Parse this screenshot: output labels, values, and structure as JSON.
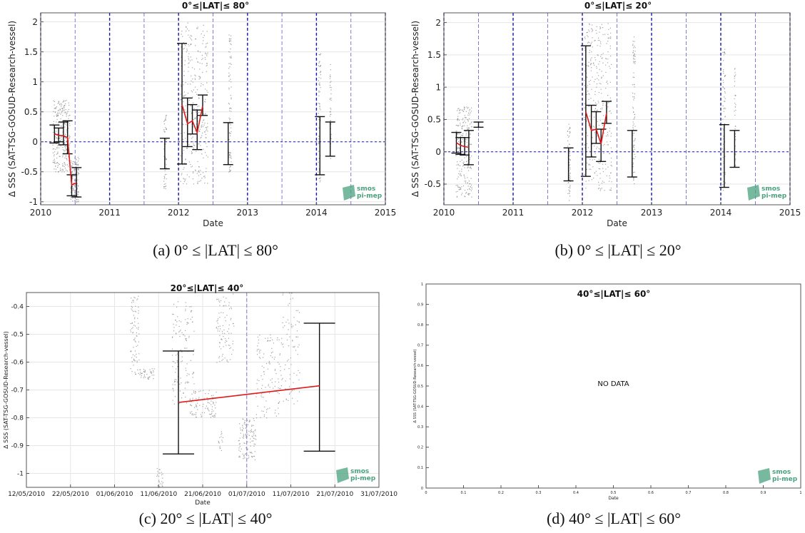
{
  "colors": {
    "axis": "#555555",
    "grid": "#e6e6e6",
    "vline_major": "#1a1aa8",
    "vline_minor": "#7c7cd6",
    "scatter": "#8c8c8c",
    "errorbar": "#111111",
    "fit": "#e01818",
    "logo": "#4aa27e"
  },
  "logo": {
    "line1": "smos",
    "line2": "pi-mep"
  },
  "chart_data": [
    {
      "id": "a",
      "type": "scatter",
      "title": "0°≤|LAT|≤ 80°",
      "caption": "(a) 0° ≤ |LAT| ≤ 80°",
      "xlabel": "Date",
      "ylabel": "Δ SSS (SAT-TSG-GOSUD-Research-vessel)",
      "x_axis": "year",
      "xlim": [
        2010,
        2015
      ],
      "ylim": [
        -1.05,
        2.15
      ],
      "xticks": [
        2010,
        2011,
        2012,
        2013,
        2014,
        2015
      ],
      "xtick_labels": [
        "2010",
        "2011",
        "2012",
        "2013",
        "2014",
        "2015"
      ],
      "yticks": [
        -1,
        -0.5,
        0,
        0.5,
        1,
        1.5,
        2
      ],
      "ytick_labels": [
        "-1",
        "-0.5",
        "0",
        "0.5",
        "1",
        "1.5",
        "2"
      ],
      "grid": true,
      "vlines_major": [
        2010,
        2011,
        2012,
        2013,
        2014,
        2015
      ],
      "vlines_minor": [
        2010.5,
        2011.5,
        2012.5,
        2013.5,
        2014.5
      ],
      "zero_line": true,
      "scatter_clusters": [
        {
          "x": [
            2010.17,
            2010.42
          ],
          "ymin": -0.5,
          "ymax": 0.7,
          "n": 260
        },
        {
          "x": [
            2010.43,
            2010.55
          ],
          "ymin": -1.0,
          "ymax": -0.25,
          "n": 140
        },
        {
          "x": [
            2011.78,
            2011.82
          ],
          "ymin": -0.8,
          "ymax": 0.5,
          "n": 60
        },
        {
          "x": [
            2012.02,
            2012.42
          ],
          "ymin": -0.7,
          "ymax": 2.0,
          "n": 320
        },
        {
          "x": [
            2012.72,
            2012.76
          ],
          "ymin": -0.5,
          "ymax": 1.8,
          "n": 80
        },
        {
          "x": [
            2014.02,
            2014.06
          ],
          "ymin": -0.7,
          "ymax": 1.6,
          "n": 70
        },
        {
          "x": [
            2014.19,
            2014.21
          ],
          "ymin": -0.3,
          "ymax": 1.3,
          "n": 40
        }
      ],
      "errorbars": [
        {
          "x": 2010.2,
          "low": -0.02,
          "high": 0.28
        },
        {
          "x": 2010.26,
          "low": 0.0,
          "high": 0.23
        },
        {
          "x": 2010.33,
          "low": -0.05,
          "high": 0.33
        },
        {
          "x": 2010.39,
          "low": -0.2,
          "high": 0.35
        },
        {
          "x": 2010.45,
          "low": -0.9,
          "high": -0.55
        },
        {
          "x": 2010.52,
          "low": -0.92,
          "high": -0.43
        },
        {
          "x": 2011.8,
          "low": -0.45,
          "high": 0.06
        },
        {
          "x": 2012.05,
          "low": -0.37,
          "high": 1.64
        },
        {
          "x": 2012.13,
          "low": -0.08,
          "high": 0.73
        },
        {
          "x": 2012.2,
          "low": 0.13,
          "high": 0.62
        },
        {
          "x": 2012.27,
          "low": -0.13,
          "high": 0.53
        },
        {
          "x": 2012.35,
          "low": 0.44,
          "high": 0.78
        },
        {
          "x": 2012.72,
          "low": -0.38,
          "high": 0.32
        },
        {
          "x": 2014.05,
          "low": -0.55,
          "high": 0.42
        },
        {
          "x": 2014.2,
          "low": -0.24,
          "high": 0.33
        }
      ],
      "fit_lines": [
        {
          "x": [
            2010.2,
            2010.26,
            2010.33,
            2010.39,
            2010.45,
            2010.52
          ],
          "y": [
            0.13,
            0.11,
            0.1,
            0.07,
            -0.72,
            -0.68
          ]
        },
        {
          "x": [
            2012.05,
            2012.13,
            2012.2,
            2012.27,
            2012.35
          ],
          "y": [
            0.62,
            0.3,
            0.35,
            0.15,
            0.6
          ]
        }
      ],
      "no_data": false
    },
    {
      "id": "b",
      "type": "scatter",
      "title": "0°≤|LAT|≤ 20°",
      "caption": "(b) 0° ≤ |LAT| ≤ 20°",
      "xlabel": "Date",
      "ylabel": "Δ SSS (SAT-TSG-GOSUD-Research-vessel)",
      "x_axis": "year",
      "xlim": [
        2010,
        2015
      ],
      "ylim": [
        -0.82,
        2.15
      ],
      "xticks": [
        2010,
        2011,
        2012,
        2013,
        2014,
        2015
      ],
      "xtick_labels": [
        "2010",
        "2011",
        "2012",
        "2013",
        "2014",
        "2015"
      ],
      "yticks": [
        -0.5,
        0,
        0.5,
        1,
        1.5,
        2
      ],
      "ytick_labels": [
        "-0.5",
        "0",
        "0.5",
        "1",
        "1.5",
        "2"
      ],
      "grid": true,
      "vlines_major": [
        2010,
        2011,
        2012,
        2013,
        2014,
        2015
      ],
      "vlines_minor": [
        2010.5,
        2011.5,
        2012.5,
        2013.5,
        2014.5
      ],
      "zero_line": true,
      "scatter_clusters": [
        {
          "x": [
            2010.17,
            2010.4
          ],
          "ymin": -0.7,
          "ymax": 0.7,
          "n": 240
        },
        {
          "x": [
            2011.78,
            2011.82
          ],
          "ymin": -0.75,
          "ymax": 0.5,
          "n": 60
        },
        {
          "x": [
            2012.02,
            2012.42
          ],
          "ymin": -0.6,
          "ymax": 2.0,
          "n": 320
        },
        {
          "x": [
            2012.72,
            2012.76
          ],
          "ymin": -0.5,
          "ymax": 1.8,
          "n": 80
        },
        {
          "x": [
            2014.02,
            2014.06
          ],
          "ymin": -0.6,
          "ymax": 1.6,
          "n": 70
        },
        {
          "x": [
            2014.19,
            2014.21
          ],
          "ymin": -0.3,
          "ymax": 1.3,
          "n": 40
        }
      ],
      "errorbars": [
        {
          "x": 2010.18,
          "low": -0.02,
          "high": 0.3
        },
        {
          "x": 2010.24,
          "low": -0.04,
          "high": 0.22
        },
        {
          "x": 2010.3,
          "low": -0.05,
          "high": 0.22
        },
        {
          "x": 2010.36,
          "low": -0.2,
          "high": 0.33
        },
        {
          "x": 2010.5,
          "low": 0.38,
          "high": 0.46
        },
        {
          "x": 2011.8,
          "low": -0.45,
          "high": 0.06
        },
        {
          "x": 2012.05,
          "low": -0.38,
          "high": 1.64
        },
        {
          "x": 2012.13,
          "low": -0.08,
          "high": 0.72
        },
        {
          "x": 2012.2,
          "low": 0.13,
          "high": 0.62
        },
        {
          "x": 2012.27,
          "low": -0.15,
          "high": 0.35
        },
        {
          "x": 2012.35,
          "low": 0.44,
          "high": 0.78
        },
        {
          "x": 2012.72,
          "low": -0.39,
          "high": 0.33
        },
        {
          "x": 2014.05,
          "low": -0.55,
          "high": 0.42
        },
        {
          "x": 2014.2,
          "low": -0.24,
          "high": 0.33
        }
      ],
      "fit_lines": [
        {
          "x": [
            2010.18,
            2010.24,
            2010.3,
            2010.36
          ],
          "y": [
            0.14,
            0.1,
            0.08,
            0.07
          ]
        },
        {
          "x": [
            2012.05,
            2012.13,
            2012.2,
            2012.27,
            2012.35
          ],
          "y": [
            0.62,
            0.33,
            0.35,
            0.12,
            0.6
          ]
        }
      ],
      "no_data": false
    },
    {
      "id": "c",
      "type": "scatter",
      "title": "20°≤|LAT|≤ 40°",
      "caption": "(c) 20° ≤ |LAT| ≤ 40°",
      "xlabel": "Date",
      "ylabel": "Δ SSS (SAT-TSG-GOSUD-Research-vessel)",
      "x_axis": "day",
      "xlim": [
        0,
        80
      ],
      "ylim": [
        -1.05,
        -0.35
      ],
      "xticks": [
        0,
        10,
        20,
        30,
        40,
        50,
        60,
        70,
        80
      ],
      "xtick_labels": [
        "12/05/2010",
        "22/05/2010",
        "01/06/2010",
        "11/06/2010",
        "21/06/2010",
        "01/07/2010",
        "11/07/2010",
        "21/07/2010",
        "31/07/2010"
      ],
      "yticks": [
        -1,
        -0.9,
        -0.8,
        -0.7,
        -0.6,
        -0.5,
        -0.4
      ],
      "ytick_labels": [
        "-1",
        "-0.9",
        "-0.8",
        "-0.7",
        "-0.6",
        "-0.5",
        "-0.4"
      ],
      "grid": true,
      "vlines_major": [],
      "vlines_minor": [
        50
      ],
      "zero_line": false,
      "scatter_clusters": [
        {
          "x": [
            23.5,
            25.5
          ],
          "ymin": -0.65,
          "ymax": -0.36,
          "n": 80
        },
        {
          "x": [
            25.5,
            29
          ],
          "ymin": -0.66,
          "ymax": -0.62,
          "n": 40
        },
        {
          "x": [
            33,
            38
          ],
          "ymin": -0.75,
          "ymax": -0.38,
          "n": 130
        },
        {
          "x": [
            37,
            43
          ],
          "ymin": -0.8,
          "ymax": -0.7,
          "n": 90
        },
        {
          "x": [
            43,
            47
          ],
          "ymin": -0.6,
          "ymax": -0.35,
          "n": 90
        },
        {
          "x": [
            48,
            52
          ],
          "ymin": -0.95,
          "ymax": -0.8,
          "n": 110
        },
        {
          "x": [
            52,
            58
          ],
          "ymin": -0.8,
          "ymax": -0.5,
          "n": 120
        },
        {
          "x": [
            58,
            62
          ],
          "ymin": -0.75,
          "ymax": -0.35,
          "n": 80
        },
        {
          "x": [
            29.5,
            31
          ],
          "ymin": -1.05,
          "ymax": -0.98,
          "n": 25
        },
        {
          "x": [
            43.5,
            44.5
          ],
          "ymin": -0.93,
          "ymax": -0.84,
          "n": 15
        }
      ],
      "errorbars": [
        {
          "x": 34.5,
          "low": -0.93,
          "high": -0.56
        },
        {
          "x": 66.5,
          "low": -0.92,
          "high": -0.46
        }
      ],
      "fit_lines": [
        {
          "x": [
            34.5,
            66.5
          ],
          "y": [
            -0.745,
            -0.685
          ]
        }
      ],
      "no_data": false
    },
    {
      "id": "d",
      "type": "scatter",
      "title": "40°≤|LAT|≤ 60°",
      "caption": "(d) 40° ≤ |LAT| ≤ 60°",
      "xlabel": "Date",
      "ylabel": "Δ SSS (SAT-TSG-GOSUD-Research-vessel)",
      "x_axis": "linear",
      "xlim": [
        0,
        1
      ],
      "ylim": [
        0,
        1
      ],
      "xticks": [
        0,
        0.1,
        0.2,
        0.3,
        0.4,
        0.5,
        0.6,
        0.7,
        0.8,
        0.9,
        1
      ],
      "xtick_labels": [
        "0",
        "0.1",
        "0.2",
        "0.3",
        "0.4",
        "0.5",
        "0.6",
        "0.7",
        "0.8",
        "0.9",
        "1"
      ],
      "yticks": [
        0,
        0.1,
        0.2,
        0.3,
        0.4,
        0.5,
        0.6,
        0.7,
        0.8,
        0.9,
        1
      ],
      "ytick_labels": [
        "0",
        "0.1",
        "0.2",
        "0.3",
        "0.4",
        "0.5",
        "0.6",
        "0.7",
        "0.8",
        "0.9",
        "1"
      ],
      "grid": false,
      "vlines_major": [],
      "vlines_minor": [],
      "zero_line": false,
      "scatter_clusters": [],
      "errorbars": [],
      "fit_lines": [],
      "no_data": true,
      "no_data_text": "NO DATA"
    }
  ]
}
